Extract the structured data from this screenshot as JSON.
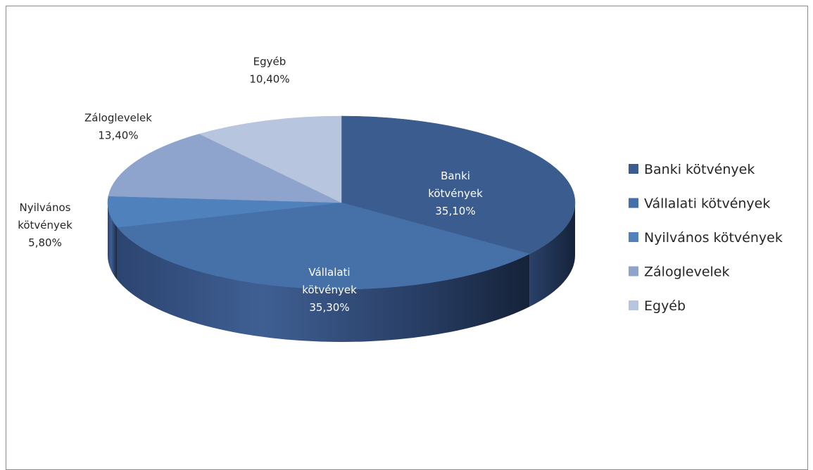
{
  "chart_data": {
    "type": "pie",
    "title": "",
    "categories": [
      "Banki kötvények",
      "Vállalati kötvények",
      "Nyilvános kötvények",
      "Záloglevelek",
      "Egyéb"
    ],
    "values": [
      35.1,
      35.3,
      5.8,
      13.4,
      10.4
    ],
    "value_labels": [
      "35,10%",
      "35,30%",
      "5,80%",
      "13,40%",
      "10,40%"
    ],
    "slice_labels": [
      [
        "Banki",
        "kötvények",
        "35,10%"
      ],
      [
        "Vállalati",
        "kötvények",
        "35,30%"
      ],
      [
        "Nyilvános",
        "kötvények",
        "5,80%"
      ],
      [
        "Záloglevelek",
        "13,40%"
      ],
      [
        "Egyéb",
        "10,40%"
      ]
    ],
    "colors": [
      "#3b5c8e",
      "#4570a8",
      "#4f81bd",
      "#8fa4cc",
      "#b8c5df"
    ],
    "style": "3d",
    "legend_position": "right"
  }
}
